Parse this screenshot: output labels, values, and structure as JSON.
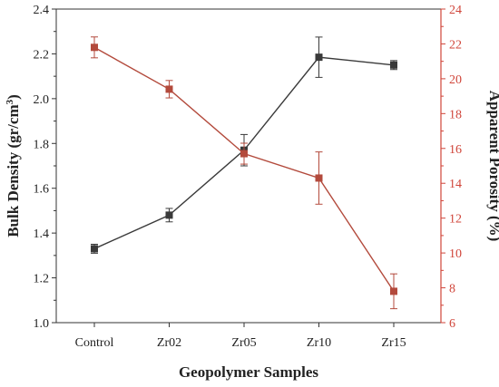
{
  "chart_data": {
    "type": "line",
    "title": "",
    "xlabel": "Geopolymer Samples",
    "categories": [
      "Control",
      "Zr02",
      "Zr05",
      "Zr10",
      "Zr15"
    ],
    "y_left": {
      "label": "Bulk Density (gr/cm3)",
      "label_main": "Bulk Density (gr/cm",
      "label_sup": "3",
      "label_end": ")",
      "range": [
        1.0,
        2.4
      ],
      "ticks": [
        "1.0",
        "1.2",
        "1.4",
        "1.6",
        "1.8",
        "2.0",
        "2.2",
        "2.4"
      ],
      "color": "#3a3a3a"
    },
    "y_right": {
      "label": "Apparent Porosity (%)",
      "range": [
        6,
        24
      ],
      "ticks": [
        "6",
        "8",
        "10",
        "12",
        "14",
        "16",
        "18",
        "20",
        "22",
        "24"
      ],
      "color": "#d0453a"
    },
    "series": [
      {
        "axis": "left",
        "color": "#3a3a3a",
        "values": [
          1.33,
          1.48,
          1.77,
          2.185,
          2.15
        ],
        "errors": [
          0.02,
          0.03,
          0.07,
          0.09,
          0.02
        ]
      },
      {
        "axis": "right",
        "color": "#b34a3c",
        "values": [
          21.8,
          19.4,
          15.7,
          14.3,
          7.8
        ],
        "errors": [
          0.6,
          0.5,
          0.6,
          1.5,
          1.0
        ]
      }
    ]
  }
}
